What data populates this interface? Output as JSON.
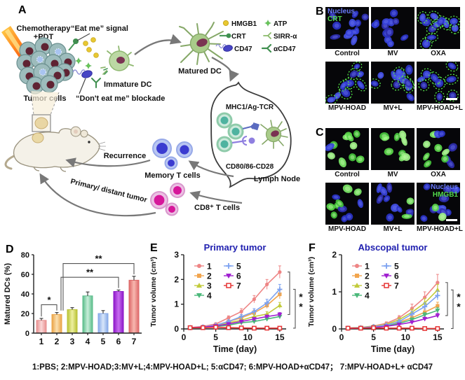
{
  "caption": "1:PBS; 2:MPV-HOAD;3:MV+L;4:MPV-HOAD+L; 5:αCD47; 6:MPV-HOAD+αCD47； 7:MPV-HOAD+L+ αCD47",
  "panels": {
    "a": {
      "label": "A",
      "texts": {
        "chemo_line1": "Chemotherapy",
        "chemo_line2": "+PDT",
        "eat_me": "“Eat me” signal",
        "dont_eat_me": "“Don't eat me” blockade",
        "tumor_cells": "Tumor cells",
        "immature_dc": "Immature DC",
        "matured_dc": "Matured DC",
        "mhc": "MHC1/Ag-TCR",
        "cd80": "CD80/86-CD28",
        "lymph_node": "Lymph Node",
        "recurrence": "Recurrence",
        "memory_t": "Memory T cells",
        "primary_distant": "Primary/ distant tumor",
        "cd8_t": "CD8⁺ T cells"
      },
      "legend": [
        {
          "icon": "hmgb1-dot-icon",
          "label": "HMGB1"
        },
        {
          "icon": "atp-star-icon",
          "label": "ATP"
        },
        {
          "icon": "crt-pin-icon",
          "label": "CRT"
        },
        {
          "icon": "sirp-receptor-icon",
          "label": "SIRR-α"
        },
        {
          "icon": "cd47-capsule-icon",
          "label": "CD47"
        },
        {
          "icon": "acd47-antibody-icon",
          "label": "αCD47"
        }
      ]
    },
    "b": {
      "label": "B",
      "overlay": {
        "tile": 0,
        "align": "left",
        "lines": [
          {
            "text": "Nucleus",
            "color": "#6b7cff"
          },
          {
            "text": "CRT",
            "color": "#52d84c"
          }
        ]
      },
      "tiles": [
        {
          "label": "Control",
          "style": "blue",
          "seed": 11
        },
        {
          "label": "MV",
          "style": "blue",
          "seed": 22
        },
        {
          "label": "OXA",
          "style": "blue-rings",
          "seed": 33
        },
        {
          "label": "MPV-HOAD",
          "style": "blue-rings",
          "seed": 44
        },
        {
          "label": "MV+L",
          "style": "blue-rings",
          "seed": 55
        },
        {
          "label": "MPV-HOAD+L",
          "style": "blue-rings",
          "seed": 66,
          "scalebar": true
        }
      ]
    },
    "c": {
      "label": "C",
      "overlay": {
        "tile": 5,
        "align": "right",
        "lines": [
          {
            "text": "Nucleus",
            "color": "#6b7cff"
          },
          {
            "text": "HMGB1",
            "color": "#52d84c"
          }
        ]
      },
      "tiles": [
        {
          "label": "Control",
          "style": "green",
          "seed": 17
        },
        {
          "label": "MV",
          "style": "green",
          "seed": 28
        },
        {
          "label": "OXA",
          "style": "mixed",
          "seed": 39
        },
        {
          "label": "MPV-HOAD",
          "style": "mixed",
          "seed": 410
        },
        {
          "label": "MV+L",
          "style": "blue-few-green",
          "seed": 511
        },
        {
          "label": "MPV-HOAD+L",
          "style": "blue-few-green",
          "seed": 612,
          "scalebar": true
        }
      ]
    },
    "d": {
      "label": "D"
    },
    "e": {
      "label": "E"
    },
    "f": {
      "label": "F"
    }
  },
  "chart_data": [
    {
      "id": "D",
      "type": "bar",
      "ylabel": "Matured DCs (%)",
      "categories": [
        "1",
        "2",
        "3",
        "4",
        "5",
        "6",
        "7"
      ],
      "values": [
        13,
        19,
        24,
        38,
        20,
        42.5,
        54
      ],
      "errors": [
        2,
        2,
        2,
        4,
        3,
        1.5,
        4
      ],
      "ylim": [
        0,
        80
      ],
      "yticks": [
        0,
        20,
        40,
        60,
        80
      ],
      "bar_fill": [
        "#fad8d8",
        "#fbe0b0",
        "#eef0a0",
        "#c8eeda",
        "#d8e6fa",
        "#c86df0",
        "#f8b8b0"
      ],
      "bar_edge": [
        "#e89090",
        "#eba447",
        "#b9c234",
        "#5bbd8b",
        "#85a9e8",
        "#8d18c8",
        "#dd6868"
      ],
      "significance": [
        {
          "a": 0,
          "b": 1,
          "label": "*",
          "level": 29,
          "a_off": 0
        },
        {
          "a": 1,
          "b": 5,
          "label": "**",
          "level": 57,
          "a_off": 6
        },
        {
          "a": 1,
          "b": 6,
          "label": "**",
          "level": 71,
          "a_off": 9
        }
      ]
    },
    {
      "id": "E",
      "type": "line",
      "title": "Primary tumor",
      "title_color": "#2121b0",
      "ylabel": "Tumor volume (cm³)",
      "xlabel": "Time (day)",
      "x": [
        1,
        3,
        5,
        7,
        9,
        11,
        13,
        15
      ],
      "xlim": [
        0,
        16
      ],
      "ylim": [
        0,
        3
      ],
      "xticks": [
        0,
        5,
        10,
        15
      ],
      "yticks": [
        0,
        1,
        2,
        3
      ],
      "series": [
        {
          "name": "1",
          "color": "#ee8585",
          "marker": "circle",
          "values": [
            0.05,
            0.1,
            0.2,
            0.45,
            0.7,
            1.2,
            1.8,
            2.3
          ],
          "errors": [
            0.02,
            0.03,
            0.05,
            0.08,
            0.12,
            0.15,
            0.2,
            0.25
          ]
        },
        {
          "name": "2",
          "color": "#f2a54e",
          "marker": "square",
          "values": [
            0.05,
            0.08,
            0.15,
            0.3,
            0.45,
            0.65,
            0.95,
            1.4
          ],
          "errors": [
            0.02,
            0.02,
            0.04,
            0.05,
            0.08,
            0.1,
            0.12,
            0.18
          ]
        },
        {
          "name": "3",
          "color": "#c2cb3b",
          "marker": "triangle",
          "values": [
            0.05,
            0.07,
            0.12,
            0.25,
            0.35,
            0.5,
            0.6,
            0.95
          ],
          "errors": [
            0.02,
            0.02,
            0.03,
            0.05,
            0.06,
            0.08,
            0.1,
            0.12
          ]
        },
        {
          "name": "4",
          "color": "#4bb87a",
          "marker": "triangle-down",
          "values": [
            0.05,
            0.06,
            0.1,
            0.15,
            0.25,
            0.3,
            0.4,
            0.5
          ],
          "errors": [
            0.01,
            0.02,
            0.02,
            0.03,
            0.04,
            0.05,
            0.06,
            0.08
          ]
        },
        {
          "name": "5",
          "color": "#7da2f0",
          "marker": "plus",
          "values": [
            0.05,
            0.08,
            0.15,
            0.3,
            0.5,
            0.7,
            1.05,
            1.6
          ],
          "errors": [
            0.02,
            0.02,
            0.04,
            0.06,
            0.08,
            0.12,
            0.15,
            0.2
          ]
        },
        {
          "name": "6",
          "color": "#a01fd0",
          "marker": "triangle-down",
          "values": [
            0.05,
            0.07,
            0.12,
            0.2,
            0.3,
            0.4,
            0.5,
            0.58
          ],
          "errors": [
            0.01,
            0.02,
            0.03,
            0.04,
            0.05,
            0.06,
            0.06,
            0.08
          ]
        },
        {
          "name": "7",
          "color": "#e53333",
          "marker": "square-open",
          "values": [
            0.05,
            0.05,
            0.07,
            0.05,
            0.04,
            0.03,
            0.03,
            0.03
          ],
          "errors": [
            0.01,
            0.01,
            0.02,
            0.01,
            0.01,
            0.01,
            0.01,
            0.01
          ]
        }
      ],
      "sig_brackets": [
        {
          "x_off": 5,
          "from_v": 2.3,
          "to_v": 0.58,
          "label": "*"
        },
        {
          "x_off": 13,
          "from_v": 1.6,
          "to_v": 0.03,
          "label": "*"
        }
      ]
    },
    {
      "id": "F",
      "type": "line",
      "title": "Abscopal tumor",
      "title_color": "#2121b0",
      "ylabel": "Tumor volume (cm³)",
      "xlabel": "Time (day)",
      "x": [
        1,
        3,
        5,
        7,
        9,
        11,
        13,
        15
      ],
      "xlim": [
        0,
        16
      ],
      "ylim": [
        0,
        2
      ],
      "xticks": [
        0,
        5,
        10,
        15
      ],
      "yticks": [
        0,
        1,
        2
      ],
      "series": [
        {
          "name": "1",
          "color": "#ee8585",
          "marker": "circle",
          "values": [
            0.02,
            0.04,
            0.08,
            0.15,
            0.3,
            0.55,
            0.85,
            1.25
          ],
          "errors": [
            0.01,
            0.01,
            0.02,
            0.04,
            0.06,
            0.12,
            0.15,
            0.22
          ]
        },
        {
          "name": "2",
          "color": "#f2a54e",
          "marker": "square",
          "values": [
            0.02,
            0.03,
            0.05,
            0.1,
            0.18,
            0.3,
            0.45,
            0.62
          ],
          "errors": [
            0.01,
            0.01,
            0.02,
            0.03,
            0.04,
            0.06,
            0.08,
            0.1
          ]
        },
        {
          "name": "3",
          "color": "#c2cb3b",
          "marker": "triangle",
          "values": [
            0.02,
            0.04,
            0.07,
            0.12,
            0.25,
            0.45,
            0.7,
            1.05
          ],
          "errors": [
            0.01,
            0.01,
            0.02,
            0.03,
            0.05,
            0.08,
            0.12,
            0.15
          ]
        },
        {
          "name": "4",
          "color": "#4bb87a",
          "marker": "triangle-down",
          "values": [
            0.02,
            0.03,
            0.05,
            0.08,
            0.15,
            0.25,
            0.38,
            0.5
          ],
          "errors": [
            0.01,
            0.01,
            0.01,
            0.02,
            0.03,
            0.05,
            0.06,
            0.08
          ]
        },
        {
          "name": "5",
          "color": "#7da2f0",
          "marker": "plus",
          "values": [
            0.02,
            0.03,
            0.06,
            0.1,
            0.2,
            0.4,
            0.6,
            0.9
          ],
          "errors": [
            0.01,
            0.01,
            0.02,
            0.03,
            0.04,
            0.07,
            0.1,
            0.12
          ]
        },
        {
          "name": "6",
          "color": "#a01fd0",
          "marker": "triangle-down",
          "values": [
            0.02,
            0.02,
            0.04,
            0.07,
            0.12,
            0.18,
            0.27,
            0.36
          ],
          "errors": [
            0.01,
            0.01,
            0.01,
            0.02,
            0.03,
            0.04,
            0.05,
            0.06
          ]
        },
        {
          "name": "7",
          "color": "#e53333",
          "marker": "square-open",
          "values": [
            0.02,
            0.02,
            0.03,
            0.02,
            0.02,
            0.02,
            0.01,
            0.01
          ],
          "errors": [
            0.01,
            0.01,
            0.01,
            0.01,
            0.01,
            0.01,
            0.01,
            0.01
          ]
        }
      ],
      "sig_brackets": [
        {
          "x_off": 5,
          "from_v": 1.25,
          "to_v": 0.36,
          "label": "*"
        },
        {
          "x_off": 13,
          "from_v": 1.05,
          "to_v": 0.01,
          "label": "*"
        }
      ]
    }
  ]
}
